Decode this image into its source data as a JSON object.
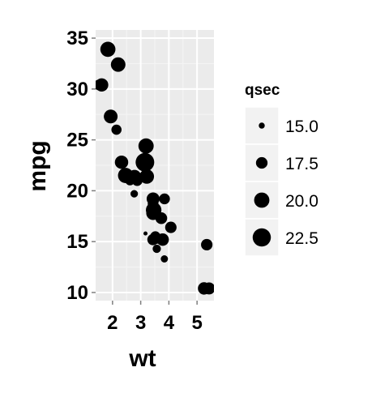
{
  "chart_data": {
    "type": "scatter",
    "title": "",
    "xlabel": "wt",
    "ylabel": "mpg",
    "xlim": [
      1.4,
      5.6
    ],
    "ylim": [
      9.2,
      35.8
    ],
    "xticks": [
      2,
      3,
      4,
      5
    ],
    "yticks": [
      10,
      15,
      20,
      25,
      30,
      35
    ],
    "grid": true,
    "legend": {
      "title": "qsec",
      "position": "right",
      "entries": [
        {
          "label": "15.0",
          "value": 15.0
        },
        {
          "label": "17.5",
          "value": 17.5
        },
        {
          "label": "20.0",
          "value": 20.0
        },
        {
          "label": "22.5",
          "value": 22.5
        }
      ]
    },
    "size_range": [
      14.5,
      22.9
    ],
    "colors": {
      "panel": "#ebebeb",
      "grid": "#ffffff",
      "point": "#000000"
    },
    "series": [
      {
        "points": [
          {
            "x": 2.62,
            "y": 21.0,
            "size": 16.46
          },
          {
            "x": 2.875,
            "y": 21.0,
            "size": 17.02
          },
          {
            "x": 2.32,
            "y": 22.8,
            "size": 18.61
          },
          {
            "x": 3.215,
            "y": 21.4,
            "size": 19.44
          },
          {
            "x": 3.44,
            "y": 18.7,
            "size": 17.02
          },
          {
            "x": 3.46,
            "y": 18.1,
            "size": 20.22
          },
          {
            "x": 3.57,
            "y": 14.3,
            "size": 15.84
          },
          {
            "x": 3.19,
            "y": 24.4,
            "size": 20.0
          },
          {
            "x": 3.15,
            "y": 22.8,
            "size": 22.9
          },
          {
            "x": 3.44,
            "y": 19.2,
            "size": 18.3
          },
          {
            "x": 3.44,
            "y": 17.8,
            "size": 18.9
          },
          {
            "x": 4.07,
            "y": 16.4,
            "size": 17.4
          },
          {
            "x": 3.73,
            "y": 17.3,
            "size": 17.6
          },
          {
            "x": 3.78,
            "y": 15.2,
            "size": 18.0
          },
          {
            "x": 5.25,
            "y": 10.4,
            "size": 17.98
          },
          {
            "x": 5.424,
            "y": 10.4,
            "size": 17.82
          },
          {
            "x": 5.345,
            "y": 14.7,
            "size": 17.42
          },
          {
            "x": 2.2,
            "y": 32.4,
            "size": 19.47
          },
          {
            "x": 1.615,
            "y": 30.4,
            "size": 18.52
          },
          {
            "x": 1.835,
            "y": 33.9,
            "size": 19.9
          },
          {
            "x": 2.465,
            "y": 21.5,
            "size": 20.01
          },
          {
            "x": 3.52,
            "y": 15.5,
            "size": 16.87
          },
          {
            "x": 3.435,
            "y": 15.2,
            "size": 17.3
          },
          {
            "x": 3.84,
            "y": 13.3,
            "size": 15.41
          },
          {
            "x": 3.845,
            "y": 19.2,
            "size": 17.05
          },
          {
            "x": 1.935,
            "y": 27.3,
            "size": 18.9
          },
          {
            "x": 2.14,
            "y": 26.0,
            "size": 16.7
          },
          {
            "x": 1.513,
            "y": 30.4,
            "size": 16.9
          },
          {
            "x": 3.17,
            "y": 15.8,
            "size": 14.5
          },
          {
            "x": 2.77,
            "y": 19.7,
            "size": 15.5
          },
          {
            "x": 3.57,
            "y": 15.0,
            "size": 14.6
          },
          {
            "x": 2.78,
            "y": 21.4,
            "size": 18.6
          }
        ]
      }
    ]
  }
}
